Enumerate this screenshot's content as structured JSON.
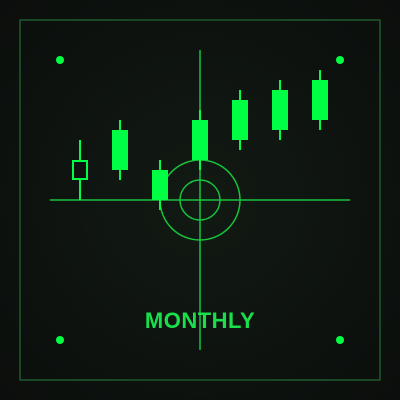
{
  "label": "MONTHLY",
  "icon": "monthly-candlestick-crosshair-icon",
  "colors": {
    "accent": "#00ff44",
    "line": "#16c43c",
    "frame": "#1f5a2c",
    "text": "#19e04a",
    "background": "#0e130f"
  },
  "candles": [
    {
      "open": 80,
      "close": 100,
      "high": 120,
      "low": 60,
      "hollow": true
    },
    {
      "open": 90,
      "close": 130,
      "high": 140,
      "low": 80
    },
    {
      "open": 60,
      "close": 90,
      "high": 100,
      "low": 50
    },
    {
      "open": 100,
      "close": 140,
      "high": 150,
      "low": 90
    },
    {
      "open": 120,
      "close": 160,
      "high": 170,
      "low": 110
    },
    {
      "open": 130,
      "close": 170,
      "high": 180,
      "low": 120
    },
    {
      "open": 140,
      "close": 180,
      "high": 190,
      "low": 130
    }
  ]
}
